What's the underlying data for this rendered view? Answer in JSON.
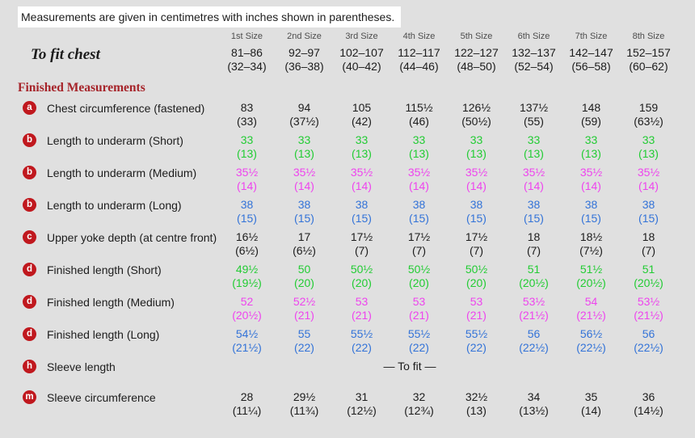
{
  "note": "Measurements are given in centimetres with inches shown in parentheses.",
  "size_headers": [
    "1st Size",
    "2nd Size",
    "3rd Size",
    "4th Size",
    "5th Size",
    "6th Size",
    "7th Size",
    "8th Size"
  ],
  "to_fit_chest": {
    "label": "To fit chest",
    "values": [
      [
        "81–86",
        "(32–34)"
      ],
      [
        "92–97",
        "(36–38)"
      ],
      [
        "102–107",
        "(40–42)"
      ],
      [
        "112–117",
        "(44–46)"
      ],
      [
        "122–127",
        "(48–50)"
      ],
      [
        "132–137",
        "(52–54)"
      ],
      [
        "142–147",
        "(56–58)"
      ],
      [
        "152–157",
        "(60–62)"
      ]
    ]
  },
  "section_title": "Finished Measurements",
  "colors": {
    "background": "#e0e0e0",
    "text": "#1c1c1c",
    "header_gray": "#4d4d4d",
    "badge_red": "#c0181e",
    "section_red": "#a6242a",
    "green": "#22cc33",
    "magenta": "#ee44ee",
    "blue": "#3373d8",
    "note_bg": "#ffffff"
  },
  "rows": [
    {
      "badge": "a",
      "label": "Chest circumference (fastened)",
      "color": "text",
      "values": [
        [
          "83",
          "(33)"
        ],
        [
          "94",
          "(37½)"
        ],
        [
          "105",
          "(42)"
        ],
        [
          "115½",
          "(46)"
        ],
        [
          "126½",
          "(50½)"
        ],
        [
          "137½",
          "(55)"
        ],
        [
          "148",
          "(59)"
        ],
        [
          "159",
          "(63½)"
        ]
      ]
    },
    {
      "badge": "b",
      "label": "Length to underarm (Short)",
      "color": "green",
      "values": [
        [
          "33",
          "(13)"
        ],
        [
          "33",
          "(13)"
        ],
        [
          "33",
          "(13)"
        ],
        [
          "33",
          "(13)"
        ],
        [
          "33",
          "(13)"
        ],
        [
          "33",
          "(13)"
        ],
        [
          "33",
          "(13)"
        ],
        [
          "33",
          "(13)"
        ]
      ]
    },
    {
      "badge": "b",
      "label": "Length to underarm (Medium)",
      "color": "magenta",
      "values": [
        [
          "35½",
          "(14)"
        ],
        [
          "35½",
          "(14)"
        ],
        [
          "35½",
          "(14)"
        ],
        [
          "35½",
          "(14)"
        ],
        [
          "35½",
          "(14)"
        ],
        [
          "35½",
          "(14)"
        ],
        [
          "35½",
          "(14)"
        ],
        [
          "35½",
          "(14)"
        ]
      ]
    },
    {
      "badge": "b",
      "label": "Length to underarm (Long)",
      "color": "blue",
      "values": [
        [
          "38",
          "(15)"
        ],
        [
          "38",
          "(15)"
        ],
        [
          "38",
          "(15)"
        ],
        [
          "38",
          "(15)"
        ],
        [
          "38",
          "(15)"
        ],
        [
          "38",
          "(15)"
        ],
        [
          "38",
          "(15)"
        ],
        [
          "38",
          "(15)"
        ]
      ]
    },
    {
      "badge": "c",
      "label": "Upper yoke depth (at centre front)",
      "color": "text",
      "values": [
        [
          "16½",
          "(6½)"
        ],
        [
          "17",
          "(6½)"
        ],
        [
          "17½",
          "(7)"
        ],
        [
          "17½",
          "(7)"
        ],
        [
          "17½",
          "(7)"
        ],
        [
          "18",
          "(7)"
        ],
        [
          "18½",
          "(7½)"
        ],
        [
          "18",
          "(7)"
        ]
      ]
    },
    {
      "badge": "d",
      "label": "Finished length (Short)",
      "color": "green",
      "values": [
        [
          "49½",
          "(19½)"
        ],
        [
          "50",
          "(20)"
        ],
        [
          "50½",
          "(20)"
        ],
        [
          "50½",
          "(20)"
        ],
        [
          "50½",
          "(20)"
        ],
        [
          "51",
          "(20½)"
        ],
        [
          "51½",
          "(20½)"
        ],
        [
          "51",
          "(20½)"
        ]
      ]
    },
    {
      "badge": "d",
      "label": "Finished length (Medium)",
      "color": "magenta",
      "values": [
        [
          "52",
          "(20½)"
        ],
        [
          "52½",
          "(21)"
        ],
        [
          "53",
          "(21)"
        ],
        [
          "53",
          "(21)"
        ],
        [
          "53",
          "(21)"
        ],
        [
          "53½",
          "(21½)"
        ],
        [
          "54",
          "(21½)"
        ],
        [
          "53½",
          "(21½)"
        ]
      ]
    },
    {
      "badge": "d",
      "label": "Finished length (Long)",
      "color": "blue",
      "values": [
        [
          "54½",
          "(21½)"
        ],
        [
          "55",
          "(22)"
        ],
        [
          "55½",
          "(22)"
        ],
        [
          "55½",
          "(22)"
        ],
        [
          "55½",
          "(22)"
        ],
        [
          "56",
          "(22½)"
        ],
        [
          "56½",
          "(22½)"
        ],
        [
          "56",
          "(22½)"
        ]
      ]
    },
    {
      "badge": "h",
      "label": "Sleeve length",
      "color": "text",
      "span_text": "— To fit —"
    },
    {
      "badge": "m",
      "label": "Sleeve circumference",
      "color": "text",
      "values": [
        [
          "28",
          "(11¼)"
        ],
        [
          "29½",
          "(11¾)"
        ],
        [
          "31",
          "(12½)"
        ],
        [
          "32",
          "(12¾)"
        ],
        [
          "32½",
          "(13)"
        ],
        [
          "34",
          "(13½)"
        ],
        [
          "35",
          "(14)"
        ],
        [
          "36",
          "(14½)"
        ]
      ]
    }
  ]
}
